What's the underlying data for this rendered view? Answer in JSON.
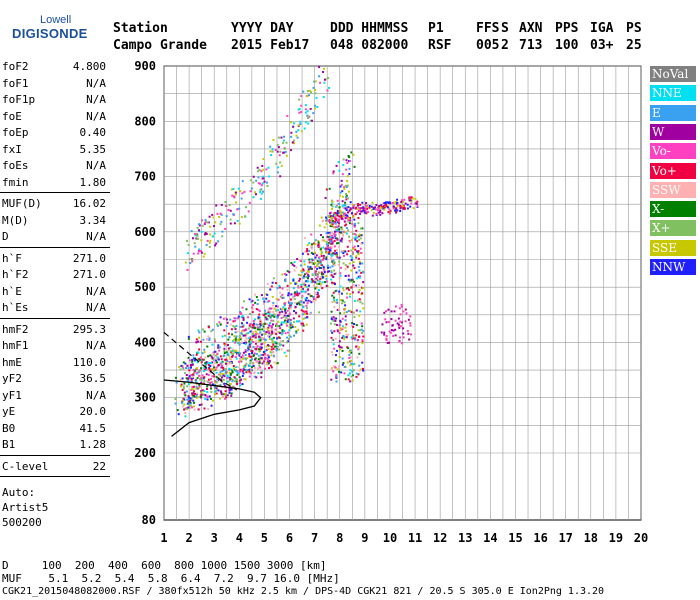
{
  "logo": {
    "line1": "Lowell",
    "line2": "DIGISONDE"
  },
  "header": {
    "labels_row": [
      "Station",
      "YYYY DAY",
      "DDD HHMMSS",
      "P1",
      "FFS",
      "S",
      "AXN",
      "PPS",
      "IGA",
      "PS"
    ],
    "values_row": [
      "Campo Grande",
      "2015 Feb17",
      "048 082000",
      "RSF",
      "005",
      "2",
      "713",
      "100",
      "03+",
      "25"
    ]
  },
  "params": [
    {
      "group": [
        {
          "name": "foF2",
          "value": "4.800"
        },
        {
          "name": "foF1",
          "value": "N/A"
        },
        {
          "name": "foF1p",
          "value": "N/A"
        },
        {
          "name": "foE",
          "value": "N/A"
        },
        {
          "name": "foEp",
          "value": "0.40"
        },
        {
          "name": "fxI",
          "value": "5.35"
        },
        {
          "name": "foEs",
          "value": "N/A"
        },
        {
          "name": "fmin",
          "value": "1.80"
        }
      ]
    },
    {
      "group": [
        {
          "name": "MUF(D)",
          "value": "16.02"
        },
        {
          "name": "M(D)",
          "value": "3.34"
        },
        {
          "name": "D",
          "value": "N/A"
        }
      ]
    },
    {
      "group": [
        {
          "name": "h`F",
          "value": "271.0"
        },
        {
          "name": "h`F2",
          "value": "271.0"
        },
        {
          "name": "h`E",
          "value": "N/A"
        },
        {
          "name": "h`Es",
          "value": "N/A"
        }
      ]
    },
    {
      "group": [
        {
          "name": "hmF2",
          "value": "295.3"
        },
        {
          "name": "hmF1",
          "value": "N/A"
        },
        {
          "name": "hmE",
          "value": "110.0"
        },
        {
          "name": "yF2",
          "value": "36.5"
        },
        {
          "name": "yF1",
          "value": "N/A"
        },
        {
          "name": "yE",
          "value": "20.0"
        },
        {
          "name": "B0",
          "value": "41.5"
        },
        {
          "name": "B1",
          "value": "1.28"
        }
      ]
    },
    {
      "group": [
        {
          "name": "C-level",
          "value": "22"
        }
      ]
    }
  ],
  "auto": [
    "Auto:",
    "Artist5",
    "500200"
  ],
  "legend": [
    {
      "label": "NoVal",
      "color": "#808080"
    },
    {
      "label": "NNE",
      "color": "#00e0f0"
    },
    {
      "label": "E",
      "color": "#3aa0f0"
    },
    {
      "label": "W",
      "color": "#a000a0"
    },
    {
      "label": "Vo-",
      "color": "#ff40c0"
    },
    {
      "label": "Vo+",
      "color": "#f00040"
    },
    {
      "label": "SSW",
      "color": "#ffb0b0"
    },
    {
      "label": "X-",
      "color": "#008000"
    },
    {
      "label": "X+",
      "color": "#80c060"
    },
    {
      "label": "SSE",
      "color": "#c8c800"
    },
    {
      "label": "NNW",
      "color": "#2020ff"
    }
  ],
  "bottom": {
    "d_row": "D     100  200  400  600  800 1000 1500 3000 [km]",
    "muf_row": "MUF    5.1  5.2  5.4  5.8  6.4  7.2  9.7 16.0 [MHz]",
    "footer": "CGK21_2015048082000.RSF / 380fx512h 50 kHz 2.5 km / DPS-4D CGK21 821 / 20.5 S 305.0 E Ion2Png 1.3.20"
  },
  "chart_data": {
    "type": "scatter",
    "xlim": [
      1,
      20
    ],
    "ylim": [
      80,
      900
    ],
    "x_ticks": [
      1,
      2,
      3,
      4,
      5,
      6,
      7,
      8,
      9,
      10,
      11,
      12,
      13,
      14,
      15,
      16,
      17,
      18,
      19,
      20
    ],
    "y_ticks": [
      80,
      200,
      300,
      400,
      500,
      600,
      700,
      800,
      900
    ],
    "grid": true,
    "o_trace": {
      "x": [
        1.6,
        2.0,
        2.5,
        3.0,
        3.5,
        4.0,
        4.5,
        4.8,
        5.2,
        5.8,
        6.4,
        7.0,
        7.5,
        8.0
      ],
      "y": [
        270,
        278,
        290,
        302,
        315,
        330,
        345,
        355,
        370,
        395,
        430,
        470,
        520,
        580
      ]
    },
    "x_trace": {
      "x": [
        2.0,
        2.5,
        3.0,
        3.5,
        4.0,
        4.5,
        5.0,
        5.5,
        6.0,
        6.5,
        7.0,
        7.5,
        8.0,
        8.3
      ],
      "y": [
        300,
        310,
        320,
        332,
        345,
        360,
        378,
        398,
        422,
        450,
        490,
        540,
        600,
        640
      ]
    },
    "second_hop": {
      "x": [
        2.0,
        2.5,
        3.0,
        3.5,
        4.0,
        4.5,
        5.0,
        5.5,
        6.0,
        6.5,
        7.0,
        7.5
      ],
      "y": [
        560,
        580,
        605,
        630,
        655,
        680,
        705,
        735,
        770,
        810,
        850,
        890
      ]
    },
    "spread": {
      "x": [
        7.5,
        8.0,
        8.5,
        9.0,
        9.5,
        10.0,
        10.5,
        11.0
      ],
      "y": [
        620,
        630,
        640,
        645,
        640,
        645,
        650,
        655
      ]
    },
    "profile": {
      "x": [
        1.3,
        2.0,
        3.0,
        4.0,
        4.6,
        4.85,
        4.6,
        4.0,
        3.0,
        2.0,
        1.5,
        1.0
      ],
      "y": [
        230,
        255,
        270,
        278,
        285,
        300,
        310,
        316,
        322,
        328,
        330,
        332
      ]
    },
    "dashed": {
      "x": [
        1.0,
        1.6,
        2.2,
        2.8,
        3.3,
        3.9
      ],
      "y": [
        418,
        395,
        372,
        350,
        330,
        314
      ]
    }
  }
}
